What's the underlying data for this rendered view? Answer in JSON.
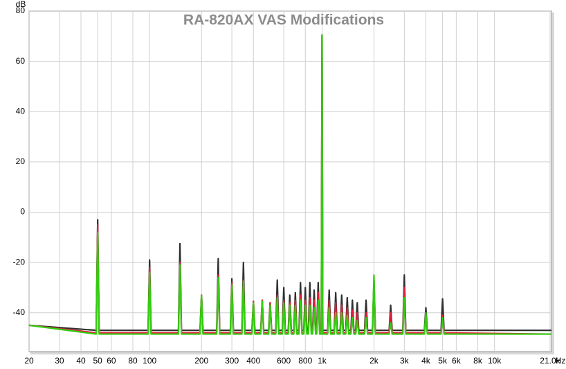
{
  "chart_data": {
    "type": "line",
    "title": "RA-820AX VAS Modifications",
    "ylabel": "dB",
    "xlabel": "Hz",
    "log_x": true,
    "grid": true,
    "xlim": [
      20,
      21400
    ],
    "ylim": [
      -55.5,
      80
    ],
    "yticks": [
      -40,
      -20,
      0,
      20,
      40,
      60,
      80
    ],
    "xticks": [
      20,
      30,
      40,
      50,
      60,
      80,
      100,
      200,
      300,
      400,
      600,
      800,
      {
        "value": 1000,
        "label": "1k"
      },
      {
        "value": 2000,
        "label": "2k"
      },
      {
        "value": 3000,
        "label": "3k"
      },
      {
        "value": 4000,
        "label": "4k"
      },
      {
        "value": 5000,
        "label": "5k"
      },
      {
        "value": 6000,
        "label": "6k"
      },
      {
        "value": 8000,
        "label": "8k"
      },
      {
        "value": 10000,
        "label": "10k"
      },
      {
        "value": 21000,
        "label": "21.0k"
      }
    ],
    "x": [
      20,
      49,
      50,
      51,
      98,
      100,
      102,
      147,
      150,
      153,
      196,
      200,
      204,
      245,
      250,
      255,
      294,
      300,
      306,
      343,
      350,
      357,
      392,
      400,
      408,
      441,
      450,
      459,
      490,
      500,
      510,
      539,
      550,
      561,
      588,
      600,
      612,
      637,
      650,
      663,
      686,
      700,
      714,
      735,
      750,
      765,
      784,
      800,
      816,
      833,
      850,
      867,
      882,
      900,
      918,
      931,
      950,
      969,
      990,
      1000,
      1010,
      1078,
      1100,
      1122,
      1176,
      1200,
      1224,
      1274,
      1300,
      1326,
      1372,
      1400,
      1428,
      1470,
      1500,
      1530,
      1568,
      1600,
      1632,
      1764,
      1800,
      1836,
      1960,
      2000,
      2040,
      2450,
      2500,
      2550,
      2940,
      3000,
      3060,
      3920,
      4000,
      4080,
      4900,
      5000,
      5100,
      21400
    ],
    "series": [
      {
        "color": "#303030",
        "values": [
          -45,
          -47,
          -3,
          -47,
          -47,
          -19,
          -47,
          -47,
          -12.5,
          -47,
          -47,
          -33,
          -47,
          -47,
          -18.5,
          -47,
          -47,
          -26.5,
          -47,
          -47,
          -20,
          -47,
          -47,
          -35.5,
          -47,
          -47,
          -35,
          -47,
          -47,
          -36,
          -47,
          -47,
          -27,
          -47,
          -47,
          -30,
          -47,
          -47,
          -33,
          -47,
          -47,
          -32,
          -47,
          -47,
          -28,
          -47,
          -47,
          -30,
          -47,
          -47,
          -28,
          -47,
          -47,
          -31,
          -47,
          -47,
          -28,
          -47,
          -47,
          70.5,
          -47,
          -47,
          -31,
          -47,
          -47,
          -32,
          -47,
          -47,
          -33,
          -47,
          -47,
          -34,
          -47,
          -47,
          -35,
          -47,
          -47,
          -36,
          -47,
          -47,
          -35,
          -47,
          -47,
          -27,
          -47,
          -47,
          -37,
          -47,
          -47,
          -25,
          -47,
          -47,
          -38,
          -47,
          -47,
          -34.5,
          -47,
          -47
        ]
      },
      {
        "color": "#e0203a",
        "values": [
          -45,
          -48,
          -5,
          -48,
          -48,
          -22,
          -48,
          -48,
          -20,
          -48,
          -48,
          -33,
          -48,
          -48,
          -25,
          -48,
          -48,
          -28,
          -48,
          -48,
          -27,
          -48,
          -48,
          -35.5,
          -48,
          -48,
          -35,
          -48,
          -48,
          -36,
          -48,
          -48,
          -33,
          -48,
          -48,
          -35,
          -48,
          -48,
          -36,
          -48,
          -48,
          -35,
          -48,
          -48,
          -33,
          -48,
          -48,
          -35,
          -48,
          -48,
          -34,
          -48,
          -48,
          -35,
          -48,
          -48,
          -32,
          -48,
          -48,
          70.5,
          -48,
          -48,
          -35,
          -48,
          -48,
          -36,
          -48,
          -48,
          -37,
          -48,
          -48,
          -38,
          -48,
          -48,
          -39,
          -48,
          -48,
          -40,
          -48,
          -48,
          -40,
          -48,
          -48,
          -30,
          -48,
          -48,
          -40,
          -48,
          -48,
          -30,
          -48,
          -48,
          -41,
          -48,
          -48,
          -41,
          -48,
          -48.5
        ]
      },
      {
        "color": "#33cc11",
        "values": [
          -45,
          -48.5,
          -8,
          -48.5,
          -48.5,
          -24,
          -48.5,
          -48.5,
          -21,
          -48.5,
          -48.5,
          -33,
          -48.5,
          -48.5,
          -26,
          -48.5,
          -48.5,
          -29,
          -48.5,
          -48.5,
          -27.5,
          -48.5,
          -48.5,
          -36,
          -48.5,
          -48.5,
          -35.5,
          -48.5,
          -48.5,
          -37,
          -48.5,
          -48.5,
          -34,
          -48.5,
          -48.5,
          -36,
          -48.5,
          -48.5,
          -37,
          -48.5,
          -48.5,
          -37,
          -48.5,
          -48.5,
          -35,
          -48.5,
          -48.5,
          -37,
          -48.5,
          -48.5,
          -37,
          -48.5,
          -48.5,
          -38,
          -48.5,
          -48.5,
          -35,
          -48.5,
          -48.5,
          70.5,
          -48.5,
          -48.5,
          -38,
          -48.5,
          -48.5,
          -40,
          -48.5,
          -48.5,
          -40,
          -48.5,
          -48.5,
          -41,
          -48.5,
          -48.5,
          -42,
          -48.5,
          -48.5,
          -43,
          -48.5,
          -48.5,
          -42,
          -48.5,
          -48.5,
          -25,
          -48.5,
          -48.5,
          -44,
          -48.5,
          -48.5,
          -34,
          -48.5,
          -48.5,
          -40,
          -48.5,
          -48.5,
          -42,
          -48.5,
          -48.5
        ]
      }
    ]
  }
}
